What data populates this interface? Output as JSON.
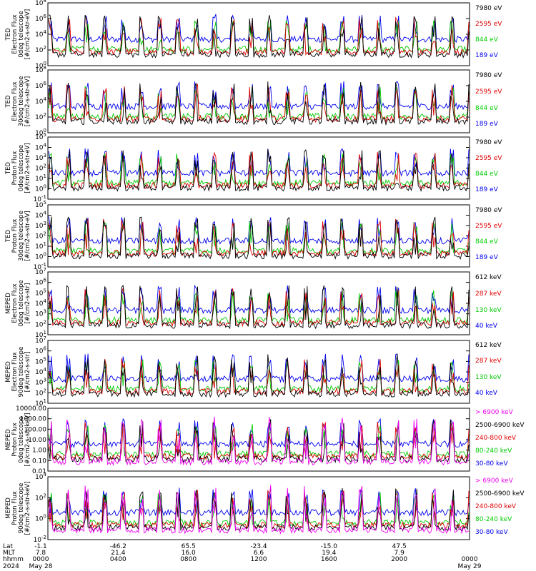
{
  "chart_data": {
    "type": "line",
    "x_start": "2024-05-28 00:00",
    "x_end": "2024-05-29 00:00",
    "panels": [
      {
        "ylabel": [
          "TED",
          "Electron Flux",
          "0deg telescope",
          "[#/cm2-s-str-eV]"
        ],
        "ytick_labels": [
          "10^0",
          "10^2",
          "10^4",
          "10^6",
          "10^8"
        ],
        "series": [
          {
            "name": "7980 eV",
            "color": "#000000"
          },
          {
            "name": "2595 eV",
            "color": "#e00000"
          },
          {
            "name": "844 eV",
            "color": "#00cc00"
          },
          {
            "name": "189 eV",
            "color": "#0000ee"
          }
        ]
      },
      {
        "ylabel": [
          "TED",
          "Electron Flux",
          "30deg telescope",
          "[#/cm2-s-str-eV]"
        ],
        "ytick_labels": [
          "10^0",
          "10^2",
          "10^4",
          "10^6",
          "10^8"
        ],
        "series": [
          {
            "name": "7980 eV",
            "color": "#000000"
          },
          {
            "name": "2595 eV",
            "color": "#e00000"
          },
          {
            "name": "844 eV",
            "color": "#00cc00"
          },
          {
            "name": "189 eV",
            "color": "#0000ee"
          }
        ]
      },
      {
        "ylabel": [
          "TED",
          "Proton Flux",
          "0deg telescope",
          "[#/cm2-s-str-eV]"
        ],
        "ytick_labels": [
          "10^-1",
          "10^0",
          "10^1",
          "10^2",
          "10^3",
          "10^4",
          "10^5"
        ],
        "series": [
          {
            "name": "7980 eV",
            "color": "#000000"
          },
          {
            "name": "2595 eV",
            "color": "#e00000"
          },
          {
            "name": "844 eV",
            "color": "#00cc00"
          },
          {
            "name": "189 eV",
            "color": "#0000ee"
          }
        ]
      },
      {
        "ylabel": [
          "TED",
          "Proton Flux",
          "30deg telescope",
          "[#/cm2-s-str-eV]"
        ],
        "ytick_labels": [
          "10^-1",
          "10^0",
          "10^1",
          "10^2",
          "10^3",
          "10^4",
          "10^5"
        ],
        "series": [
          {
            "name": "7980 eV",
            "color": "#000000"
          },
          {
            "name": "2595 eV",
            "color": "#e00000"
          },
          {
            "name": "844 eV",
            "color": "#00cc00"
          },
          {
            "name": "189 eV",
            "color": "#0000ee"
          }
        ]
      },
      {
        "ylabel": [
          "MEPED",
          "Electron Flux",
          "0deg telescope",
          "[#/cm2-s-str]"
        ],
        "ytick_labels": [
          "10^1",
          "10^2",
          "10^3",
          "10^4",
          "10^5",
          "10^6",
          "10^7"
        ],
        "series": [
          {
            "name": "612 keV",
            "color": "#000000"
          },
          {
            "name": "287 keV",
            "color": "#e00000"
          },
          {
            "name": "130 keV",
            "color": "#00cc00"
          },
          {
            "name": "40 keV",
            "color": "#0000ee"
          }
        ]
      },
      {
        "ylabel": [
          "MEPED",
          "Electron Flux",
          "90deg telescope",
          "[#/cm2-s-str]"
        ],
        "ytick_labels": [
          "10^1",
          "10^2",
          "10^3",
          "10^4",
          "10^5",
          "10^6",
          "10^7"
        ],
        "series": [
          {
            "name": "612 keV",
            "color": "#000000"
          },
          {
            "name": "287 keV",
            "color": "#e00000"
          },
          {
            "name": "130 keV",
            "color": "#00cc00"
          },
          {
            "name": "40 keV",
            "color": "#0000ee"
          }
        ]
      },
      {
        "ylabel": [
          "MEPED",
          "Proton Flux",
          "0deg telescope",
          "[#/cm2-s-str-keV]"
        ],
        "ytick_labels": [
          "0.01",
          "0.10",
          "1.00",
          "10.00",
          "100.00",
          "1000.00",
          "10000.00"
        ],
        "series": [
          {
            "name": "> 6900 keV",
            "color": "#ee00ee"
          },
          {
            "name": "2500-6900 keV",
            "color": "#000000"
          },
          {
            "name": "240-800 keV",
            "color": "#e00000"
          },
          {
            "name": "80-240 keV",
            "color": "#00cc00"
          },
          {
            "name": "30-80 keV",
            "color": "#0000ee"
          }
        ]
      },
      {
        "ylabel": [
          "MEPED",
          "Proton Flux",
          "90deg telescope",
          "[#/cm2-s-str-keV]"
        ],
        "ytick_labels": [
          "10^-2",
          "10^0",
          "10^2",
          "10^4"
        ],
        "series": [
          {
            "name": "> 6900 keV",
            "color": "#ee00ee"
          },
          {
            "name": "2500-6900 keV",
            "color": "#000000"
          },
          {
            "name": "240-800 keV",
            "color": "#e00000"
          },
          {
            "name": "80-240 keV",
            "color": "#00cc00"
          },
          {
            "name": "30-80 keV",
            "color": "#0000ee"
          }
        ]
      }
    ],
    "x_axis": {
      "row_labels": [
        "Lat",
        "MLT",
        "hhmm",
        "2024"
      ],
      "ticks": [
        {
          "lat": "-1.1",
          "mlt": "7.8",
          "hhmm": "0000",
          "date": "May 28"
        },
        {
          "lat": "-46.2",
          "mlt": "21.4",
          "hhmm": "0400",
          "date": ""
        },
        {
          "lat": "65.5",
          "mlt": "16.0",
          "hhmm": "0800",
          "date": ""
        },
        {
          "lat": "-23.4",
          "mlt": "6.6",
          "hhmm": "1200",
          "date": ""
        },
        {
          "lat": "-15.0",
          "mlt": "19.4",
          "hhmm": "1600",
          "date": ""
        },
        {
          "lat": "47.5",
          "mlt": "7.9",
          "hhmm": "2000",
          "date": ""
        },
        {
          "lat": "",
          "mlt": "",
          "hhmm": "0000",
          "date": "May 29"
        }
      ]
    }
  }
}
